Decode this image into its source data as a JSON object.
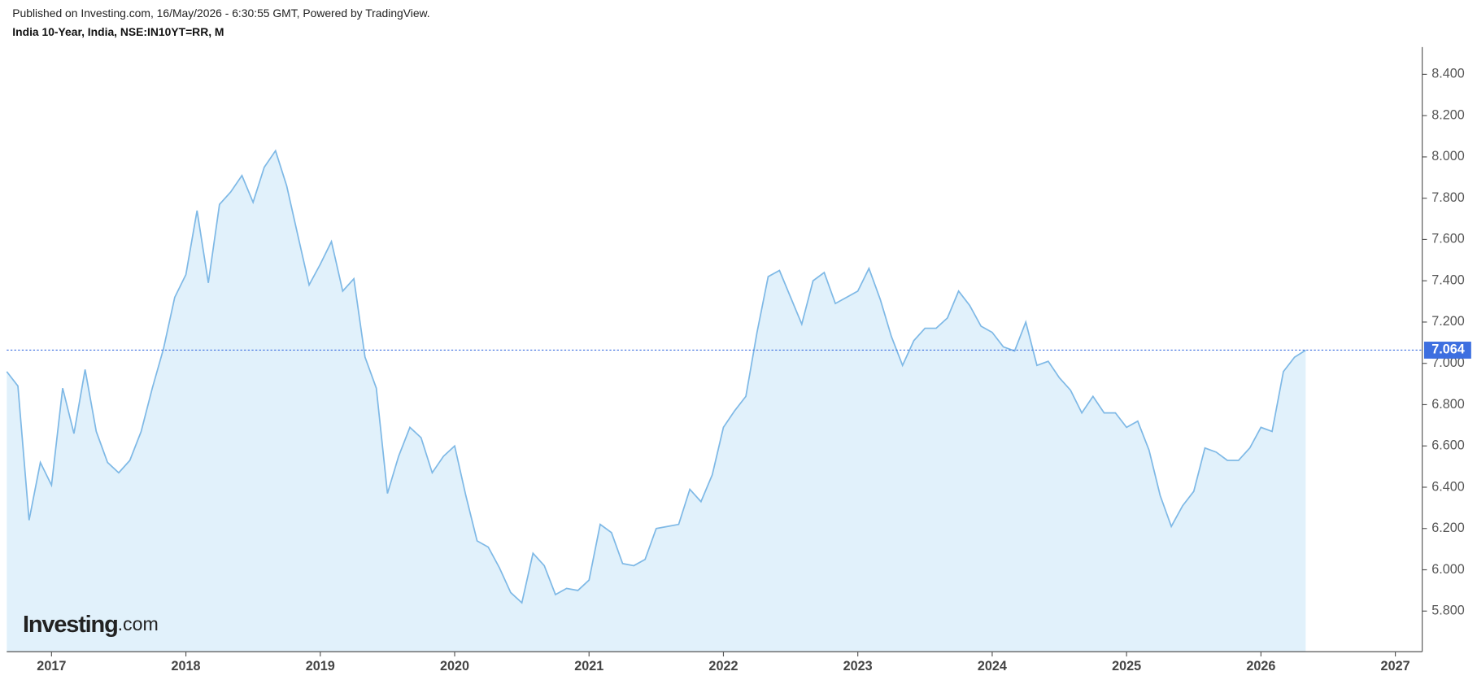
{
  "chart_data": {
    "type": "area",
    "header": "Published on Investing.com, 16/May/2026 - 6:30:55 GMT, Powered by TradingView.",
    "title": "India 10-Year, India, NSE:IN10YT=RR, M",
    "logo": [
      "Investing",
      ".com"
    ],
    "x": [
      2016.667,
      2016.75,
      2016.833,
      2016.917,
      2017,
      2017.083,
      2017.167,
      2017.25,
      2017.333,
      2017.417,
      2017.5,
      2017.583,
      2017.667,
      2017.75,
      2017.833,
      2017.917,
      2018,
      2018.083,
      2018.167,
      2018.25,
      2018.333,
      2018.417,
      2018.5,
      2018.583,
      2018.667,
      2018.75,
      2018.833,
      2018.917,
      2019,
      2019.083,
      2019.167,
      2019.25,
      2019.333,
      2019.417,
      2019.5,
      2019.583,
      2019.667,
      2019.75,
      2019.833,
      2019.917,
      2020,
      2020.083,
      2020.167,
      2020.25,
      2020.333,
      2020.417,
      2020.5,
      2020.583,
      2020.667,
      2020.75,
      2020.833,
      2020.917,
      2021,
      2021.083,
      2021.167,
      2021.25,
      2021.333,
      2021.417,
      2021.5,
      2021.583,
      2021.667,
      2021.75,
      2021.833,
      2021.917,
      2022,
      2022.083,
      2022.167,
      2022.25,
      2022.333,
      2022.417,
      2022.5,
      2022.583,
      2022.667,
      2022.75,
      2022.833,
      2022.917,
      2023,
      2023.083,
      2023.167,
      2023.25,
      2023.333,
      2023.417,
      2023.5,
      2023.583,
      2023.667,
      2023.75,
      2023.833,
      2023.917,
      2024,
      2024.083,
      2024.167,
      2024.25,
      2024.333,
      2024.417,
      2024.5,
      2024.583,
      2024.667,
      2024.75,
      2024.833,
      2024.917,
      2025,
      2025.083,
      2025.167,
      2025.25,
      2025.333,
      2025.417,
      2025.5,
      2025.583,
      2025.667,
      2025.75,
      2025.833,
      2025.917,
      2026,
      2026.083,
      2026.167,
      2026.25,
      2026.333
    ],
    "series": [
      {
        "name": "India 10-Year",
        "color": "#7fb9e6",
        "fill": "#e1f1fb",
        "values": [
          6.96,
          6.89,
          6.24,
          6.52,
          6.41,
          6.88,
          6.66,
          6.97,
          6.67,
          6.52,
          6.47,
          6.53,
          6.67,
          6.88,
          7.07,
          7.32,
          7.43,
          7.74,
          7.39,
          7.77,
          7.83,
          7.91,
          7.78,
          7.95,
          8.03,
          7.86,
          7.62,
          7.38,
          7.48,
          7.59,
          7.35,
          7.41,
          7.03,
          6.88,
          6.37,
          6.55,
          6.69,
          6.64,
          6.47,
          6.55,
          6.6,
          6.36,
          6.14,
          6.11,
          6.01,
          5.89,
          5.84,
          6.08,
          6.02,
          5.88,
          5.91,
          5.9,
          5.95,
          6.22,
          6.18,
          6.03,
          6.02,
          6.05,
          6.2,
          6.21,
          6.22,
          6.39,
          6.33,
          6.46,
          6.69,
          6.77,
          6.84,
          7.15,
          7.42,
          7.45,
          7.32,
          7.19,
          7.4,
          7.44,
          7.29,
          7.32,
          7.35,
          7.46,
          7.31,
          7.13,
          6.99,
          7.11,
          7.17,
          7.17,
          7.22,
          7.35,
          7.28,
          7.18,
          7.15,
          7.08,
          7.06,
          7.2,
          6.99,
          7.01,
          6.93,
          6.87,
          6.76,
          6.84,
          6.76,
          6.76,
          6.69,
          6.72,
          6.58,
          6.36,
          6.21,
          6.31,
          6.38,
          6.59,
          6.57,
          6.53,
          6.53,
          6.59,
          6.69,
          6.67,
          6.96,
          7.03,
          7.064
        ]
      }
    ],
    "price_line": {
      "value": 7.064,
      "label": "7.064",
      "color": "#3d6fe0"
    },
    "xlim": [
      2016.667,
      2027.2
    ],
    "xticks": [
      2017,
      2018,
      2019,
      2020,
      2021,
      2022,
      2023,
      2024,
      2025,
      2026,
      2027
    ],
    "ylim": [
      5.603,
      8.532
    ],
    "yticks": [
      {
        "value": 5.8,
        "label": "5.800"
      },
      {
        "value": 6,
        "label": "6.000"
      },
      {
        "value": 6.2,
        "label": "6.200"
      },
      {
        "value": 6.4,
        "label": "6.400"
      },
      {
        "value": 6.6,
        "label": "6.600"
      },
      {
        "value": 6.8,
        "label": "6.800"
      },
      {
        "value": 7,
        "label": "7.000"
      },
      {
        "value": 7.2,
        "label": "7.200"
      },
      {
        "value": 7.4,
        "label": "7.400"
      },
      {
        "value": 7.6,
        "label": "7.600"
      },
      {
        "value": 7.8,
        "label": "7.800"
      },
      {
        "value": 8,
        "label": "8.000"
      },
      {
        "value": 8.2,
        "label": "8.200"
      },
      {
        "value": 8.4,
        "label": "8.400"
      }
    ],
    "grid": false
  }
}
